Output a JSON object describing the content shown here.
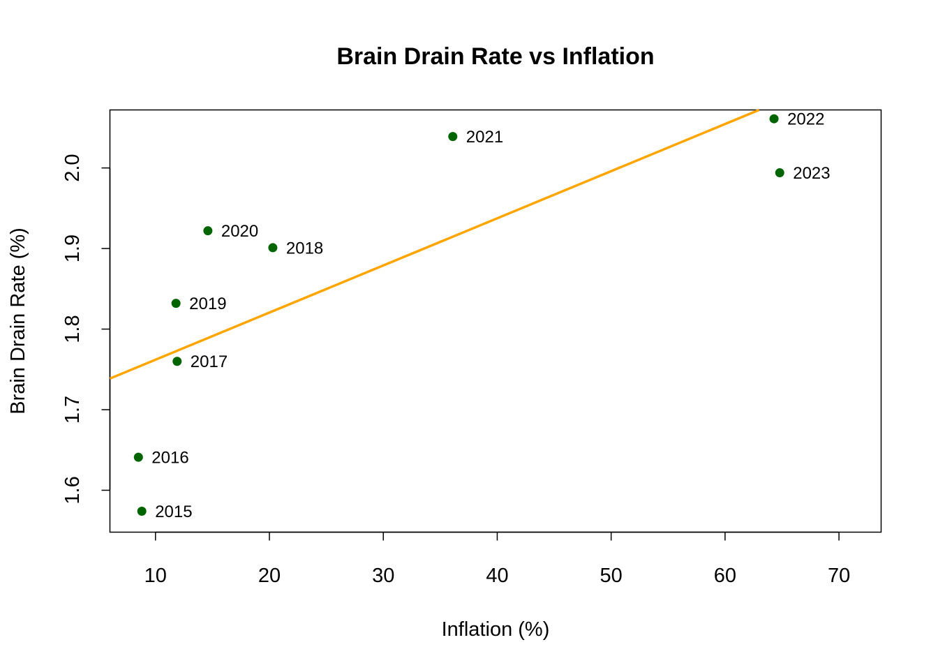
{
  "chart_data": {
    "type": "scatter",
    "title": "Brain Drain Rate vs Inflation",
    "xlabel": "Inflation (%)",
    "ylabel": "Brain Drain Rate (%)",
    "xlim": [
      6,
      73.7
    ],
    "ylim": [
      1.548,
      2.072
    ],
    "x_ticks": [
      10,
      20,
      30,
      40,
      50,
      60,
      70
    ],
    "y_ticks": [
      1.6,
      1.7,
      1.8,
      1.9,
      2.0
    ],
    "y_tick_labels": [
      "1.6",
      "1.7",
      "1.8",
      "1.9",
      "2.0"
    ],
    "grid": false,
    "point_color": "#006400",
    "trend_color": "#FFA500",
    "trendline": {
      "slope": 0.00585,
      "intercept": 1.7035
    },
    "points": [
      {
        "label": "2015",
        "x": 8.8,
        "y": 1.574
      },
      {
        "label": "2016",
        "x": 8.5,
        "y": 1.641
      },
      {
        "label": "2017",
        "x": 11.9,
        "y": 1.76
      },
      {
        "label": "2018",
        "x": 20.3,
        "y": 1.901
      },
      {
        "label": "2019",
        "x": 11.8,
        "y": 1.832
      },
      {
        "label": "2020",
        "x": 14.6,
        "y": 1.922
      },
      {
        "label": "2021",
        "x": 36.1,
        "y": 2.039
      },
      {
        "label": "2022",
        "x": 64.3,
        "y": 2.061
      },
      {
        "label": "2023",
        "x": 64.8,
        "y": 1.994
      }
    ]
  }
}
